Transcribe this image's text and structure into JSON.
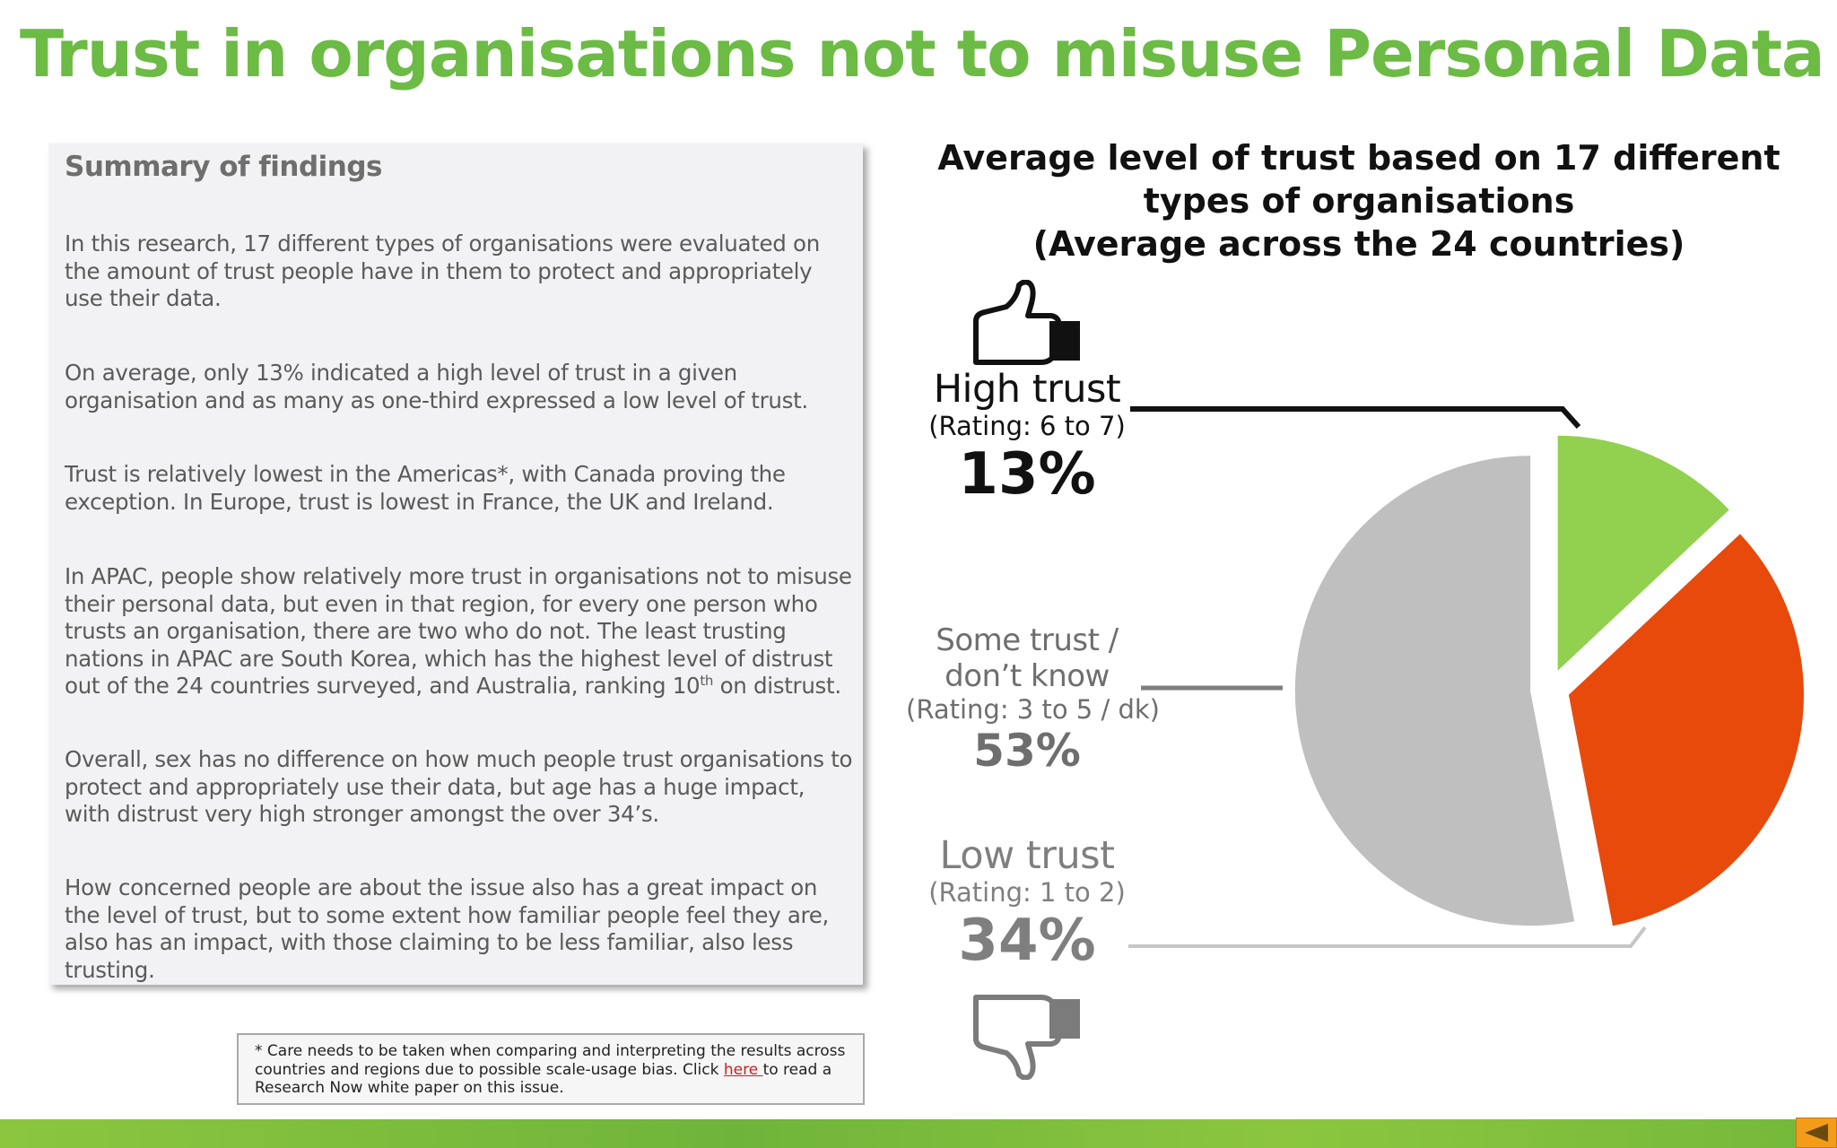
{
  "title": "Trust in organisations not to misuse Personal Data",
  "summary": {
    "heading": "Summary of findings",
    "paragraphs": [
      "In this research, 17 different types of organisations were evaluated on the amount of trust people have in them to protect and appropriately use their data.",
      "On average, only 13% indicated a high level of trust in a given organisation and as many as one-third expressed a low level of trust.",
      "Trust is relatively lowest in the Americas*, with Canada proving the exception. In Europe, trust is lowest in France, the UK and Ireland.",
      "In APAC, people show relatively more trust in organisations not to misuse their personal data, but even in that region, for every one person who trusts an organisation, there are two who do not. The least trusting nations in APAC are South Korea, which has the highest level of distrust out of the 24 countries surveyed, and Australia, ranking 10",
      "Overall, sex has no difference on how much people trust organisations to protect and appropriately use their data, but age has a huge impact, with distrust very high stronger amongst the over 34’s.",
      "How concerned people are about the issue also has a great impact on the level of trust, but to some extent how familiar people feel they are, also has an impact, with those claiming to be less familiar, also less trusting."
    ],
    "para4_sup": "th",
    "para4_tail": " on distrust."
  },
  "footnote": {
    "text_before": "* Care needs to be taken when comparing and interpreting the results across countries and regions due to possible scale-usage bias. Click ",
    "link": "here ",
    "text_after": "to read a Research Now white paper on this issue."
  },
  "chart_data": {
    "type": "pie",
    "title": "Average level of trust based on 17 different types of organisations (Average across the 24 countries)",
    "title_lines": [
      "Average level of trust based on 17 different",
      "types of organisations",
      "(Average across the 24 countries)"
    ],
    "slices": [
      {
        "name": "High trust",
        "rating": "(Rating: 6 to 7)",
        "value": 13,
        "label": "13%",
        "color": "#92d050"
      },
      {
        "name": "Low trust",
        "rating": "(Rating: 1 to 2)",
        "value": 34,
        "label": "34%",
        "color": "#e84a0c"
      },
      {
        "name": "Some trust / don’t know",
        "name_lines": [
          "Some trust /",
          "don’t know"
        ],
        "rating": "(Rating: 3 to 5 / dk)",
        "value": 53,
        "label": "53%",
        "color": "#bfbfbf"
      }
    ],
    "label_colors": {
      "high": "#111111",
      "some": "#6e6e6e",
      "low": "#7f7f7f"
    },
    "thumb_colors": {
      "up": "#111111",
      "down": "#7b7b7b"
    }
  },
  "icons": {
    "thumbs_up": "thumbs-up-icon",
    "thumbs_down": "thumbs-down-icon",
    "back": "back-arrow-icon"
  }
}
